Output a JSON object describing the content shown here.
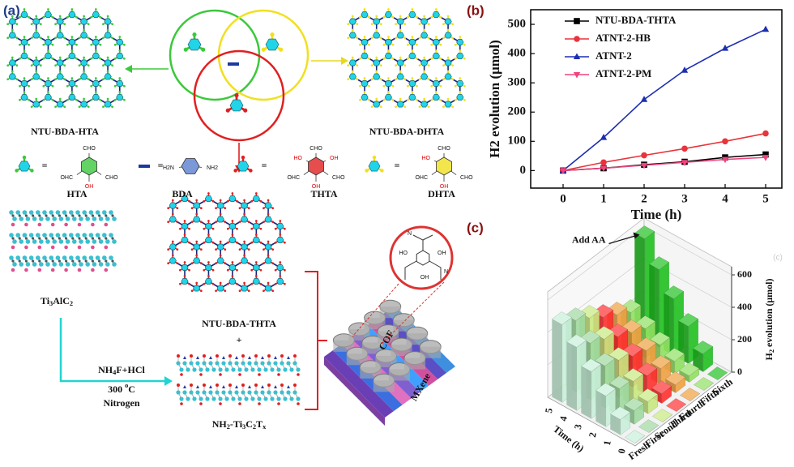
{
  "panel_labels": [
    "(a)",
    "(b)",
    "(c)"
  ],
  "diagram": {
    "networks": [
      {
        "label": "NTU-BDA-HTA",
        "color": "#3cc83c"
      },
      {
        "label": "NTU-BDA-DHTA",
        "color": "#f0e020"
      },
      {
        "label": "NTU-BDA-THTA",
        "color": "#e02020"
      }
    ],
    "monomers": [
      {
        "label": "HTA",
        "color": "#3cc83c",
        "groups": [
          "CHO",
          "OHC",
          "CHO",
          "OH"
        ]
      },
      {
        "label": "BDA",
        "color": "#5a7fd0",
        "groups": [
          "H2N",
          "NH2"
        ]
      },
      {
        "label": "THTA",
        "color": "#e02020",
        "groups": [
          "CHO",
          "HO",
          "OH",
          "OHC",
          "CHO",
          "OH"
        ]
      },
      {
        "label": "DHTA",
        "color": "#f0e020",
        "groups": [
          "CHO",
          "HO",
          "OHC",
          "CHO",
          "OH"
        ]
      }
    ],
    "equals": "=",
    "plus": "+",
    "mxene_precursor": [
      {
        "t": "Ti"
      },
      {
        "t": "3",
        "sub": true
      },
      {
        "t": "AlC"
      },
      {
        "t": "2",
        "sub": true
      }
    ],
    "etch": {
      "reagent": [
        {
          "t": "NH"
        },
        {
          "t": "4",
          "sub": true
        },
        {
          "t": "F+HCl"
        }
      ],
      "temperature": [
        {
          "t": "300 "
        },
        {
          "t": "o",
          "sup": true
        },
        {
          "t": "C"
        }
      ],
      "atmosphere": "Nitrogen"
    },
    "mxene": [
      {
        "t": "NH"
      },
      {
        "t": "2",
        "sub": true
      },
      {
        "t": "-Ti"
      },
      {
        "t": "3",
        "sub": true
      },
      {
        "t": "C"
      },
      {
        "t": "2",
        "sub": true
      },
      {
        "t": "T"
      },
      {
        "t": "x",
        "sub": true
      }
    ],
    "composite": {
      "cof": "COF",
      "mxene": "MXene",
      "zoom_groups": [
        "OH",
        "HO",
        "OH",
        "N",
        "N"
      ]
    }
  },
  "chart_data": [
    {
      "type": "line",
      "xlabel": "Time (h)",
      "ylabel": "H2 evolution (μmol)",
      "x": [
        0,
        1,
        2,
        3,
        4,
        5
      ],
      "xlim": [
        -0.8,
        5.4
      ],
      "xticks": [
        0,
        1,
        2,
        3,
        4,
        5
      ],
      "ylim": [
        -60,
        550
      ],
      "yticks": [
        0,
        100,
        200,
        300,
        400,
        500
      ],
      "legend": "upper left",
      "series": [
        {
          "name": "NTU-BDA-THTA",
          "color": "#000000",
          "marker": "square",
          "values": [
            0,
            8,
            20,
            30,
            45,
            55
          ]
        },
        {
          "name": "ATNT-2-HB",
          "color": "#e8343c",
          "marker": "circle",
          "values": [
            0,
            28,
            52,
            75,
            100,
            127
          ]
        },
        {
          "name": "ATNT-2",
          "color": "#1c2fb0",
          "marker": "triangle-up",
          "values": [
            0,
            113,
            243,
            343,
            418,
            483
          ]
        },
        {
          "name": "ATNT-2-PM",
          "color": "#f0447e",
          "marker": "triangle-down",
          "values": [
            0,
            8,
            18,
            28,
            38,
            45
          ]
        }
      ]
    },
    {
      "type": "bar3d",
      "xlabel": "Time (h)",
      "zlabel": [
        {
          "t": "H"
        },
        {
          "t": "2",
          "sub": true
        },
        {
          "t": " evolution (μmol)"
        }
      ],
      "x": [
        0,
        1,
        2,
        3,
        4,
        5
      ],
      "zlim": [
        0,
        650
      ],
      "zticks": [
        0,
        200,
        400,
        600
      ],
      "annotation": "Add AA",
      "watermark": "(c)",
      "series": [
        {
          "name": "Fresh",
          "color": "#c8f0d8",
          "values": [
            0,
            95,
            190,
            290,
            390,
            480
          ]
        },
        {
          "name": "First",
          "color": "#9fd9a0",
          "values": [
            0,
            85,
            170,
            260,
            350,
            440
          ]
        },
        {
          "name": "Seond",
          "color": "#c8e880",
          "values": [
            0,
            75,
            150,
            230,
            310,
            390
          ]
        },
        {
          "name": "Third",
          "color": "#ff3030",
          "values": [
            0,
            60,
            120,
            190,
            260,
            330
          ]
        },
        {
          "name": "Fourth",
          "color": "#f0a040",
          "values": [
            0,
            50,
            100,
            160,
            220,
            280
          ]
        },
        {
          "name": "Fifth",
          "color": "#90e060",
          "values": [
            0,
            40,
            80,
            130,
            180,
            230
          ]
        },
        {
          "name": "Sixth",
          "color": "#20c020",
          "values": [
            0,
            110,
            230,
            350,
            480,
            620
          ]
        }
      ]
    }
  ]
}
